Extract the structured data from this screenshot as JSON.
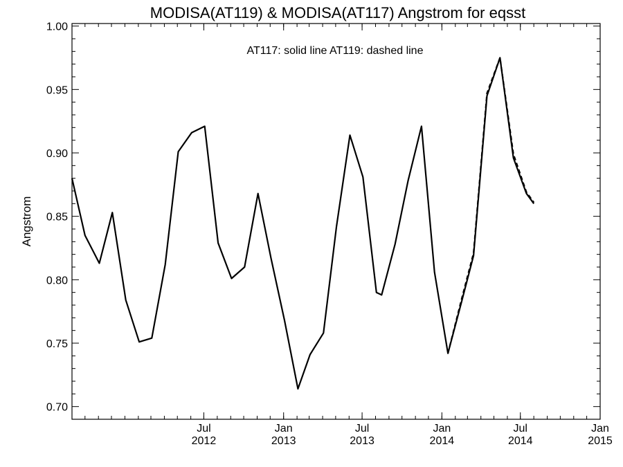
{
  "chart_data": {
    "type": "line",
    "title": "MODISA(AT119) & MODISA(AT117)  Angstrom for eqsst",
    "annotation": "AT117: solid line   AT119: dashed line",
    "ylabel": "Angstrom",
    "xlabel": "",
    "xlim": [
      "2011-09-01",
      "2015-01-01"
    ],
    "ylim": [
      0.69,
      1.002
    ],
    "y_ticks": [
      "0.70",
      "0.75",
      "0.80",
      "0.85",
      "0.90",
      "0.95",
      "1.00"
    ],
    "x_ticks": [
      {
        "date": "2012-07-01",
        "month": "Jul",
        "year": "2012"
      },
      {
        "date": "2013-01-01",
        "month": "Jan",
        "year": "2013"
      },
      {
        "date": "2013-07-01",
        "month": "Jul",
        "year": "2013"
      },
      {
        "date": "2014-01-01",
        "month": "Jan",
        "year": "2014"
      },
      {
        "date": "2014-07-01",
        "month": "Jul",
        "year": "2014"
      },
      {
        "date": "2015-01-01",
        "month": "Jan",
        "year": "2015"
      }
    ],
    "series": [
      {
        "name": "AT117",
        "style": "solid",
        "color": "#000000",
        "points": [
          [
            "2011-09-01",
            0.88
          ],
          [
            "2011-10-01",
            0.835
          ],
          [
            "2011-11-03",
            0.813
          ],
          [
            "2011-12-03",
            0.853
          ],
          [
            "2012-01-03",
            0.784
          ],
          [
            "2012-02-03",
            0.751
          ],
          [
            "2012-03-03",
            0.754
          ],
          [
            "2012-04-03",
            0.812
          ],
          [
            "2012-05-03",
            0.901
          ],
          [
            "2012-06-03",
            0.916
          ],
          [
            "2012-07-03",
            0.921
          ],
          [
            "2012-08-03",
            0.829
          ],
          [
            "2012-09-03",
            0.801
          ],
          [
            "2012-10-03",
            0.81
          ],
          [
            "2012-11-03",
            0.868
          ],
          [
            "2012-12-03",
            0.817
          ],
          [
            "2013-01-03",
            0.768
          ],
          [
            "2013-02-03",
            0.714
          ],
          [
            "2013-03-03",
            0.741
          ],
          [
            "2013-04-03",
            0.758
          ],
          [
            "2013-05-03",
            0.842
          ],
          [
            "2013-06-03",
            0.914
          ],
          [
            "2013-07-03",
            0.881
          ],
          [
            "2013-08-03",
            0.79
          ],
          [
            "2013-08-15",
            0.788
          ],
          [
            "2013-09-15",
            0.828
          ],
          [
            "2013-10-15",
            0.878
          ],
          [
            "2013-11-15",
            0.921
          ],
          [
            "2013-12-15",
            0.806
          ],
          [
            "2014-01-15",
            0.742
          ],
          [
            "2014-02-15",
            0.782
          ],
          [
            "2014-03-15",
            0.819
          ],
          [
            "2014-04-15",
            0.945
          ],
          [
            "2014-05-15",
            0.975
          ],
          [
            "2014-06-15",
            0.896
          ],
          [
            "2014-07-15",
            0.868
          ],
          [
            "2014-08-01",
            0.86
          ]
        ]
      },
      {
        "name": "AT119",
        "style": "dashed",
        "color": "#000000",
        "points": [
          [
            "2014-01-15",
            0.742
          ],
          [
            "2014-02-15",
            0.784
          ],
          [
            "2014-03-15",
            0.821
          ],
          [
            "2014-04-15",
            0.947
          ],
          [
            "2014-05-15",
            0.975
          ],
          [
            "2014-06-15",
            0.899
          ],
          [
            "2014-07-15",
            0.869
          ],
          [
            "2014-08-01",
            0.861
          ]
        ]
      }
    ]
  }
}
